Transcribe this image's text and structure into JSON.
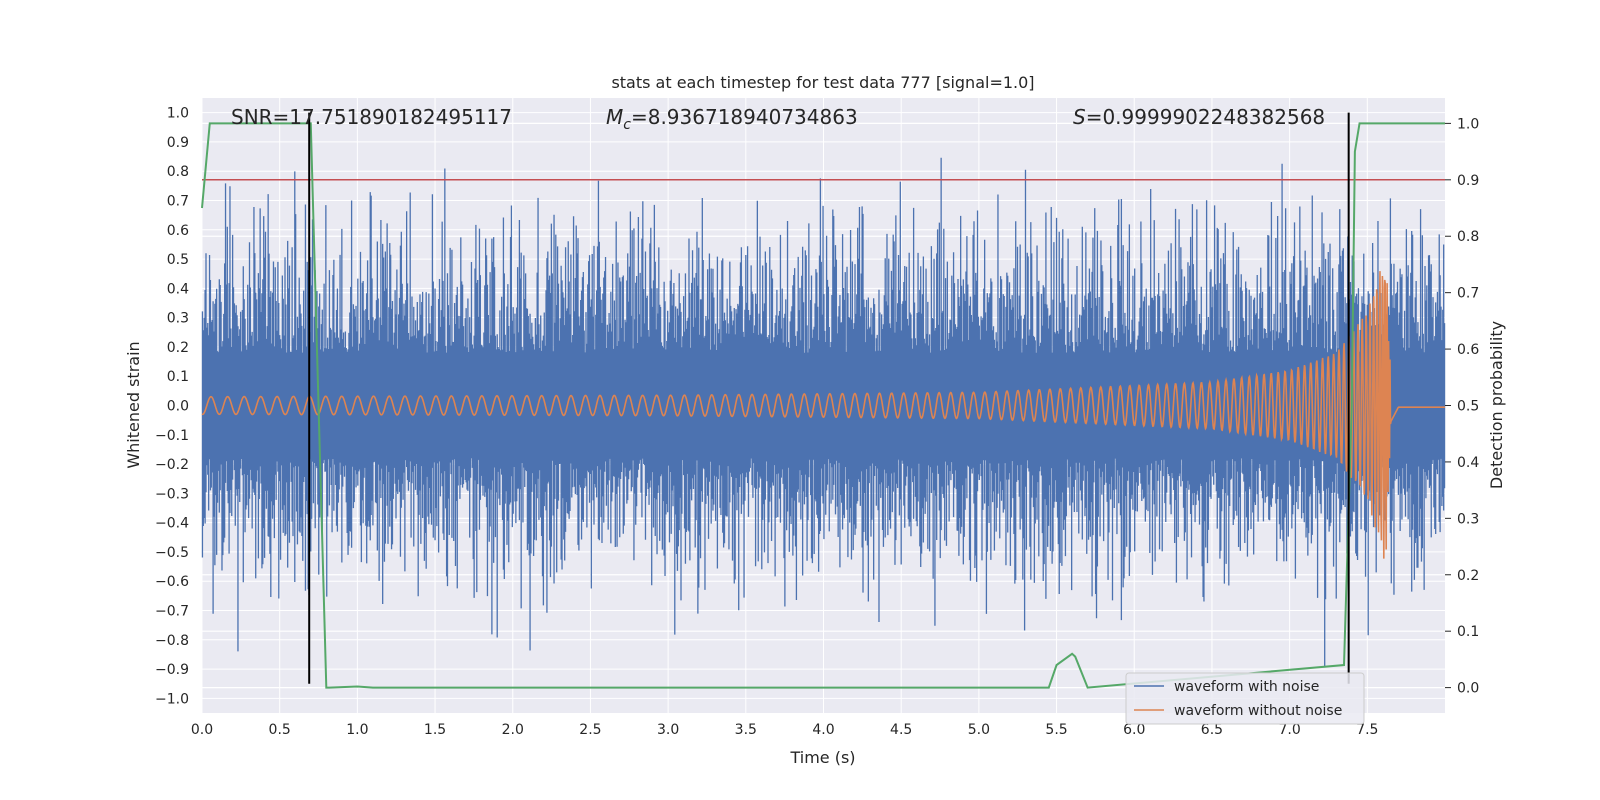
{
  "chart_data": {
    "type": "line",
    "title": "stats at each timestep for test data 777 [signal=1.0]",
    "xlabel": "Time (s)",
    "ylabel": "Whitened strain",
    "y2label": "Detection probability",
    "xlim": [
      0.0,
      8.0
    ],
    "ylim": [
      -1.05,
      1.05
    ],
    "y2lim": [
      -0.045,
      1.045
    ],
    "xticks": [
      "0.0",
      "0.5",
      "1.0",
      "1.5",
      "2.0",
      "2.5",
      "3.0",
      "3.5",
      "4.0",
      "4.5",
      "5.0",
      "5.5",
      "6.0",
      "6.5",
      "7.0",
      "7.5"
    ],
    "yticks": [
      "1.0",
      "0.9",
      "0.8",
      "0.7",
      "0.6",
      "0.5",
      "0.4",
      "0.3",
      "0.2",
      "0.1",
      "0.0",
      "-0.1",
      "-0.2",
      "-0.3",
      "-0.4",
      "-0.5",
      "-0.6",
      "-0.7",
      "-0.8",
      "-0.9",
      "-1.0"
    ],
    "y2ticks": [
      "1.0",
      "0.9",
      "0.8",
      "0.7",
      "0.6",
      "0.5",
      "0.4",
      "0.3",
      "0.2",
      "0.1",
      "0.0"
    ],
    "grid": true,
    "legend_position": "lower-right",
    "annotations": {
      "snr": "SNR=17.751890182495117",
      "mc_symbol": "M",
      "mc_subscript": "c",
      "mc_value": "=8.936718940734863",
      "s_symbol": "S",
      "s_value": "=0.9999902248382568"
    },
    "series": [
      {
        "name": "waveform with noise",
        "color": "#4c72b0",
        "peak_abs": 1.0,
        "typical_envelope": 0.4
      },
      {
        "name": "waveform without noise",
        "color": "#dd8452",
        "envelope": {
          "t": [
            0.0,
            3.0,
            5.0,
            6.5,
            7.0,
            7.3,
            7.5,
            7.62,
            7.65,
            7.7,
            8.0
          ],
          "amp": [
            0.03,
            0.035,
            0.045,
            0.08,
            0.12,
            0.18,
            0.32,
            0.55,
            0.1,
            0.01,
            0.01
          ]
        }
      },
      {
        "name": "detection probability",
        "color": "#55a868",
        "axis": "right",
        "x": [
          0.0,
          0.05,
          0.1,
          0.7,
          0.8,
          0.82,
          1.0,
          1.1,
          5.45,
          5.5,
          5.6,
          5.62,
          5.7,
          7.35,
          7.4,
          7.42,
          7.45,
          8.0
        ],
        "y": [
          0.85,
          1.0,
          1.0,
          1.0,
          0.0,
          0.0,
          0.002,
          0.0,
          0.0,
          0.04,
          0.06,
          0.055,
          0.0,
          0.04,
          0.5,
          0.95,
          1.0,
          1.0
        ]
      }
    ],
    "threshold_line": {
      "axis": "right",
      "value": 0.9,
      "color": "#c44e52"
    },
    "marker_lines": {
      "x": [
        0.69,
        7.38
      ],
      "y_range": [
        -0.95,
        1.0
      ],
      "color": "#000000"
    }
  }
}
